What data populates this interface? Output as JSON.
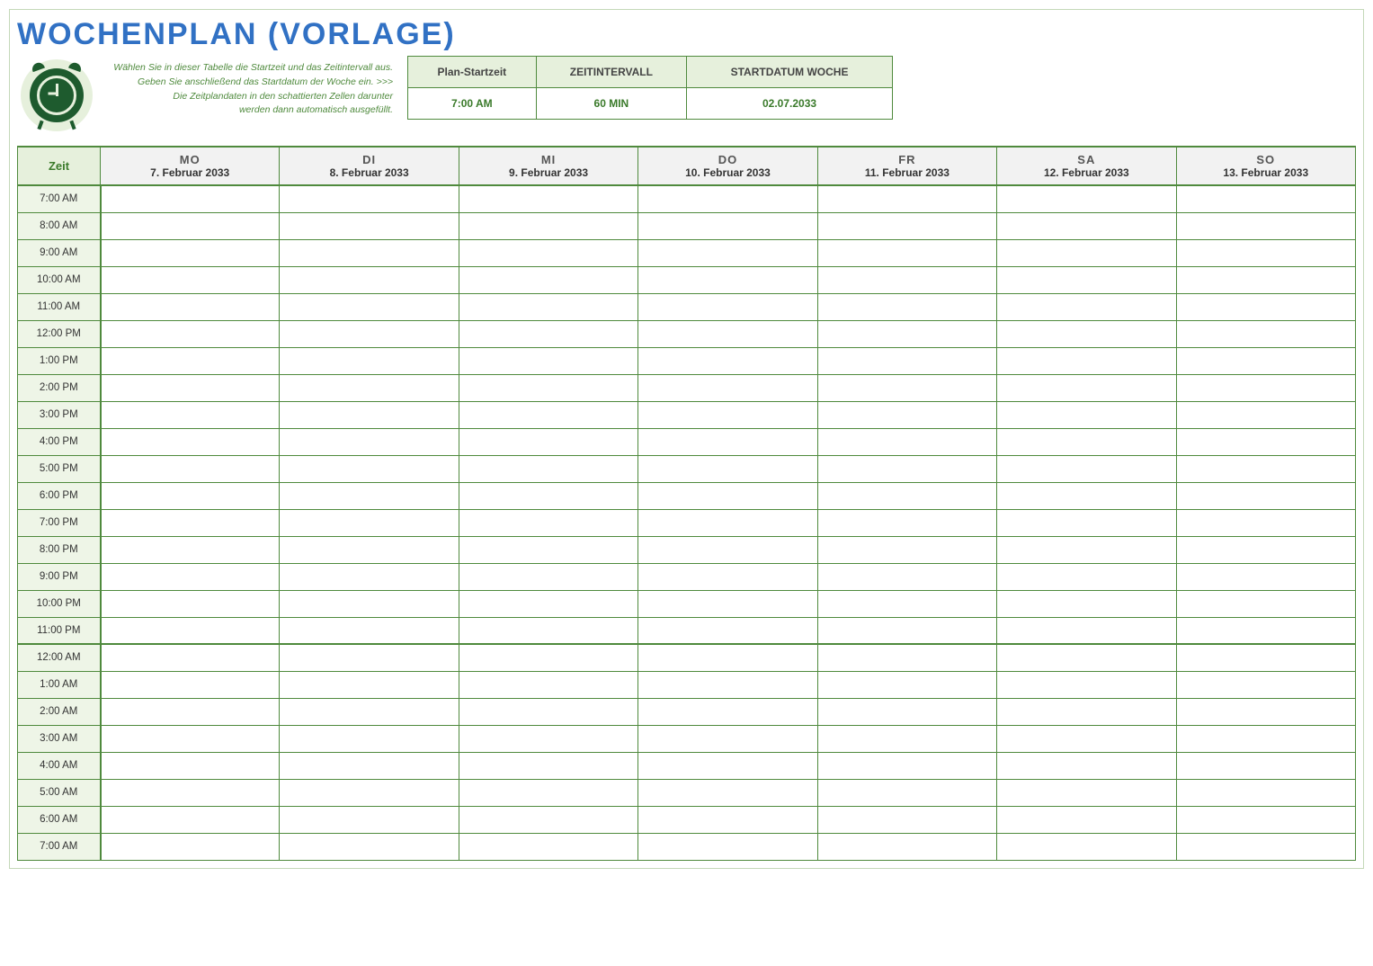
{
  "title": "WOCHENPLAN (VORLAGE)",
  "instructions": {
    "line1": "Wählen Sie in dieser Tabelle die Startzeit und das Zeitintervall aus.",
    "line2": "Geben Sie anschließend das Startdatum der Woche ein. >>>",
    "line3": "Die Zeitplandaten in den schattierten Zellen darunter",
    "line4": "werden dann automatisch ausgefüllt."
  },
  "config": {
    "headers": {
      "start": "Plan-Startzeit",
      "interval": "ZEITINTERVALL",
      "week": "STARTDATUM WOCHE"
    },
    "values": {
      "start": "7:00 AM",
      "interval": "60 MIN",
      "week": "02.07.2033"
    }
  },
  "schedule": {
    "time_header": "Zeit",
    "days": [
      {
        "short": "MO",
        "date": "7. Februar 2033"
      },
      {
        "short": "DI",
        "date": "8. Februar 2033"
      },
      {
        "short": "MI",
        "date": "9. Februar 2033"
      },
      {
        "short": "DO",
        "date": "10. Februar 2033"
      },
      {
        "short": "FR",
        "date": "11. Februar 2033"
      },
      {
        "short": "SA",
        "date": "12. Februar 2033"
      },
      {
        "short": "SO",
        "date": "13. Februar 2033"
      }
    ],
    "times": [
      "7:00 AM",
      "8:00 AM",
      "9:00 AM",
      "10:00 AM",
      "11:00 AM",
      "12:00 PM",
      "1:00 PM",
      "2:00 PM",
      "3:00 PM",
      "4:00 PM",
      "5:00 PM",
      "6:00 PM",
      "7:00 PM",
      "8:00 PM",
      "9:00 PM",
      "10:00 PM",
      "11:00 PM",
      "12:00 AM",
      "1:00 AM",
      "2:00 AM",
      "3:00 AM",
      "4:00 AM",
      "5:00 AM",
      "6:00 AM",
      "7:00 AM"
    ],
    "separator_index": 17
  },
  "colors": {
    "accent_green": "#4f8a3d",
    "light_green": "#e6f0dc",
    "pale_green": "#eef5e7",
    "title_blue": "#3171c4",
    "header_gray": "#f2f2f2"
  }
}
